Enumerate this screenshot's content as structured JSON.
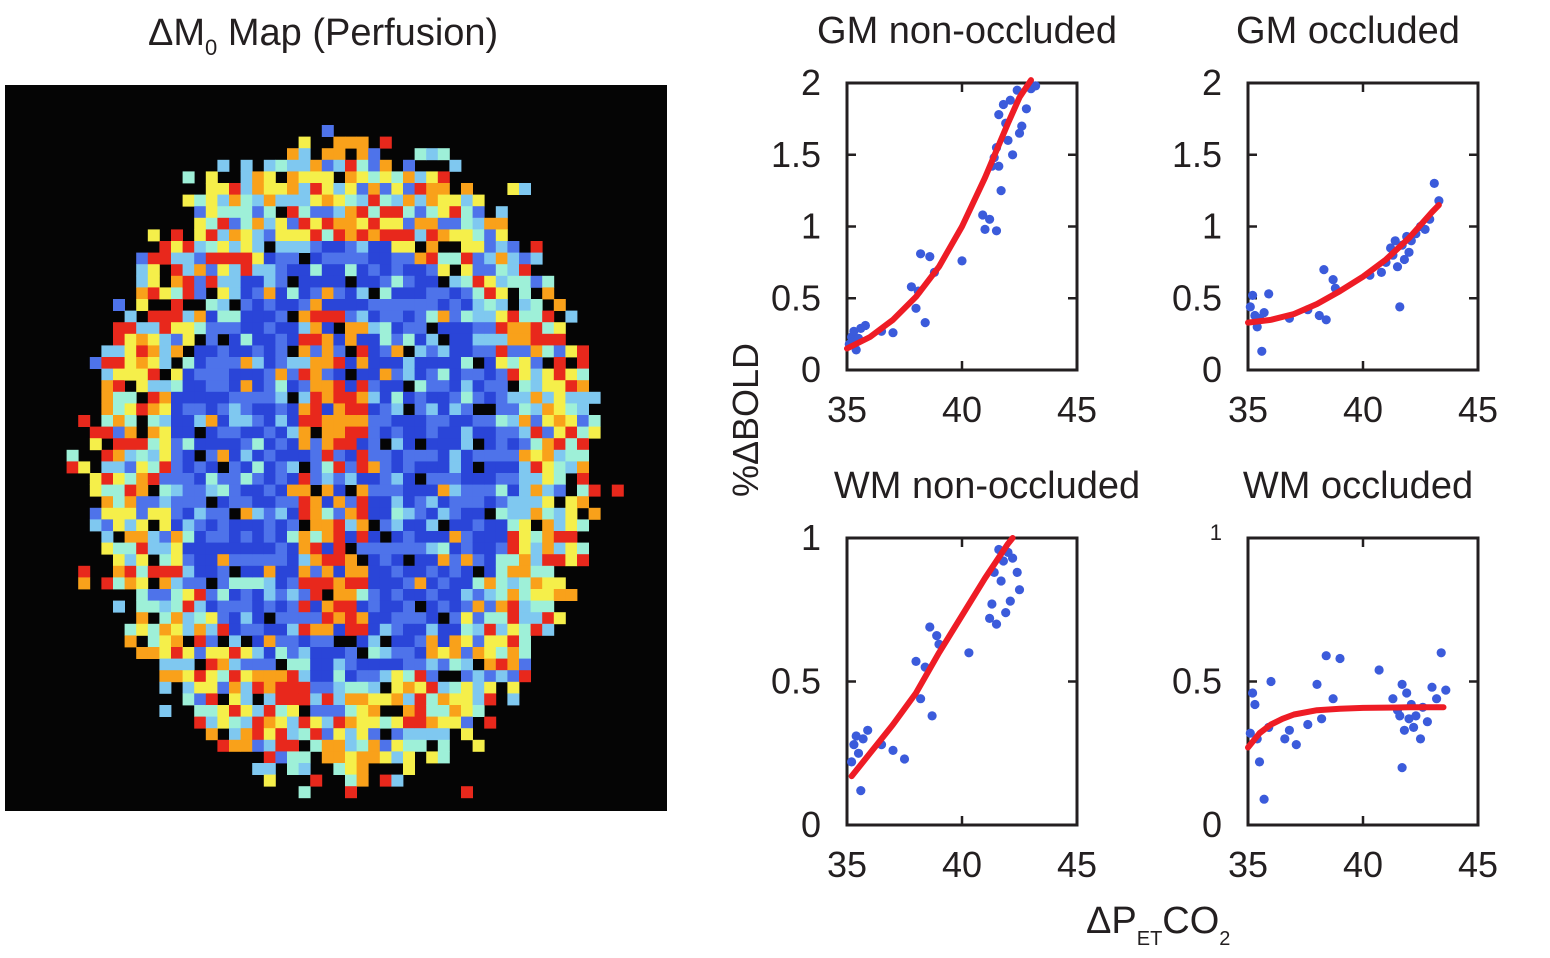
{
  "figure": {
    "map_title_prefix": "ΔM",
    "map_title_sub": "0",
    "map_title_suffix": " Map (Perfusion)",
    "ylabel": "%ΔBOLD",
    "xlabel_prefix": "ΔP",
    "xlabel_sub1": "ET",
    "xlabel_mid": "CO",
    "xlabel_sub2": "2"
  },
  "colors": {
    "points": "#3b5bdb",
    "fit": "#ee1c25",
    "map_background": "#050505"
  },
  "map_legend": {
    "colormap": [
      "#2a45d8",
      "#4e73ea",
      "#7fc8f0",
      "#9ef0d8",
      "#f5ef4a",
      "#f9a11a",
      "#e8281c"
    ]
  },
  "chart_data": [
    {
      "type": "scatter",
      "title": "GM non-occluded",
      "xlim": [
        35,
        45
      ],
      "ylim": [
        0,
        2
      ],
      "xticks": [
        35,
        40,
        45
      ],
      "yticks": [
        0,
        0.5,
        1,
        1.5,
        2
      ],
      "ytick_labels": [
        "0",
        "0.5",
        "1",
        "1.5",
        "2"
      ],
      "points": [
        [
          35.1,
          0.18
        ],
        [
          35.2,
          0.23
        ],
        [
          35.3,
          0.2
        ],
        [
          35.3,
          0.27
        ],
        [
          35.4,
          0.14
        ],
        [
          35.5,
          0.22
        ],
        [
          35.6,
          0.29
        ],
        [
          35.8,
          0.31
        ],
        [
          36.5,
          0.27
        ],
        [
          37.0,
          0.26
        ],
        [
          37.8,
          0.58
        ],
        [
          38.0,
          0.43
        ],
        [
          38.1,
          0.55
        ],
        [
          38.2,
          0.81
        ],
        [
          38.4,
          0.33
        ],
        [
          38.6,
          0.79
        ],
        [
          38.8,
          0.68
        ],
        [
          40.0,
          0.76
        ],
        [
          40.9,
          1.08
        ],
        [
          41.0,
          0.98
        ],
        [
          41.2,
          1.05
        ],
        [
          41.3,
          1.42
        ],
        [
          41.4,
          1.48
        ],
        [
          41.5,
          0.97
        ],
        [
          41.5,
          1.55
        ],
        [
          41.6,
          1.78
        ],
        [
          41.6,
          1.42
        ],
        [
          41.7,
          1.25
        ],
        [
          41.8,
          1.85
        ],
        [
          41.9,
          1.72
        ],
        [
          42.0,
          1.6
        ],
        [
          42.1,
          1.88
        ],
        [
          42.2,
          1.5
        ],
        [
          42.4,
          1.95
        ],
        [
          42.5,
          1.65
        ],
        [
          42.6,
          1.7
        ],
        [
          42.8,
          1.82
        ],
        [
          43.0,
          1.96
        ],
        [
          43.2,
          1.98
        ]
      ],
      "fit": [
        [
          35.0,
          0.15
        ],
        [
          36.0,
          0.23
        ],
        [
          37.0,
          0.35
        ],
        [
          38.0,
          0.51
        ],
        [
          39.0,
          0.72
        ],
        [
          40.0,
          1.0
        ],
        [
          41.0,
          1.34
        ],
        [
          42.0,
          1.72
        ],
        [
          42.5,
          1.9
        ],
        [
          43.0,
          2.02
        ]
      ]
    },
    {
      "type": "scatter",
      "title": "GM occluded",
      "xlim": [
        35,
        45
      ],
      "ylim": [
        0,
        2
      ],
      "xticks": [
        35,
        40,
        45
      ],
      "yticks": [
        0,
        0.5,
        1,
        1.5,
        2
      ],
      "ytick_labels": [
        "0",
        "0.5",
        "1",
        "1.5",
        "2"
      ],
      "points": [
        [
          35.1,
          0.44
        ],
        [
          35.2,
          0.52
        ],
        [
          35.3,
          0.38
        ],
        [
          35.4,
          0.3
        ],
        [
          35.5,
          0.36
        ],
        [
          35.6,
          0.13
        ],
        [
          35.7,
          0.4
        ],
        [
          35.9,
          0.53
        ],
        [
          36.8,
          0.36
        ],
        [
          37.6,
          0.42
        ],
        [
          38.1,
          0.38
        ],
        [
          38.3,
          0.7
        ],
        [
          38.4,
          0.35
        ],
        [
          38.7,
          0.63
        ],
        [
          38.8,
          0.57
        ],
        [
          40.3,
          0.66
        ],
        [
          40.8,
          0.68
        ],
        [
          41.0,
          0.75
        ],
        [
          41.2,
          0.85
        ],
        [
          41.3,
          0.8
        ],
        [
          41.4,
          0.9
        ],
        [
          41.5,
          0.72
        ],
        [
          41.6,
          0.44
        ],
        [
          41.7,
          0.87
        ],
        [
          41.8,
          0.77
        ],
        [
          41.9,
          0.93
        ],
        [
          42.0,
          0.82
        ],
        [
          42.1,
          0.9
        ],
        [
          42.3,
          0.95
        ],
        [
          42.5,
          1.0
        ],
        [
          42.7,
          0.98
        ],
        [
          42.9,
          1.05
        ],
        [
          43.1,
          1.3
        ],
        [
          43.3,
          1.18
        ]
      ],
      "fit": [
        [
          35.0,
          0.33
        ],
        [
          36.0,
          0.35
        ],
        [
          37.0,
          0.39
        ],
        [
          38.0,
          0.46
        ],
        [
          39.0,
          0.55
        ],
        [
          40.0,
          0.65
        ],
        [
          41.0,
          0.77
        ],
        [
          42.0,
          0.92
        ],
        [
          43.0,
          1.1
        ],
        [
          43.3,
          1.15
        ]
      ]
    },
    {
      "type": "scatter",
      "title": "WM non-occluded",
      "xlim": [
        35,
        45
      ],
      "ylim": [
        0,
        1
      ],
      "xticks": [
        35,
        40,
        45
      ],
      "yticks": [
        0,
        0.5,
        1
      ],
      "ytick_labels": [
        "0",
        "0.5",
        "1"
      ],
      "points": [
        [
          35.2,
          0.22
        ],
        [
          35.3,
          0.28
        ],
        [
          35.4,
          0.31
        ],
        [
          35.5,
          0.25
        ],
        [
          35.6,
          0.12
        ],
        [
          35.7,
          0.3
        ],
        [
          35.9,
          0.33
        ],
        [
          36.5,
          0.28
        ],
        [
          37.0,
          0.26
        ],
        [
          37.5,
          0.23
        ],
        [
          38.0,
          0.57
        ],
        [
          38.2,
          0.44
        ],
        [
          38.4,
          0.55
        ],
        [
          38.6,
          0.69
        ],
        [
          38.7,
          0.38
        ],
        [
          38.9,
          0.66
        ],
        [
          39.0,
          0.63
        ],
        [
          40.3,
          0.6
        ],
        [
          41.2,
          0.72
        ],
        [
          41.3,
          0.77
        ],
        [
          41.4,
          0.88
        ],
        [
          41.5,
          0.7
        ],
        [
          41.6,
          0.96
        ],
        [
          41.7,
          0.85
        ],
        [
          41.8,
          0.92
        ],
        [
          41.9,
          0.74
        ],
        [
          42.0,
          0.95
        ],
        [
          42.1,
          0.78
        ],
        [
          42.2,
          0.93
        ],
        [
          42.4,
          0.88
        ],
        [
          42.5,
          0.82
        ]
      ],
      "fit": [
        [
          35.2,
          0.17
        ],
        [
          36.0,
          0.25
        ],
        [
          37.0,
          0.35
        ],
        [
          38.0,
          0.46
        ],
        [
          39.0,
          0.6
        ],
        [
          40.0,
          0.73
        ],
        [
          41.0,
          0.86
        ],
        [
          42.0,
          0.98
        ],
        [
          42.2,
          1.0
        ]
      ]
    },
    {
      "type": "scatter",
      "title": "WM occluded",
      "xlim": [
        35,
        45
      ],
      "ylim": [
        0,
        1
      ],
      "xticks": [
        35,
        40,
        45
      ],
      "yticks": [
        0,
        0.5,
        1
      ],
      "ytick_labels": [
        "0",
        "0.5",
        "1"
      ],
      "points": [
        [
          35.1,
          0.32
        ],
        [
          35.2,
          0.46
        ],
        [
          35.3,
          0.42
        ],
        [
          35.4,
          0.3
        ],
        [
          35.5,
          0.22
        ],
        [
          35.7,
          0.09
        ],
        [
          35.9,
          0.34
        ],
        [
          36.0,
          0.5
        ],
        [
          36.6,
          0.3
        ],
        [
          36.8,
          0.33
        ],
        [
          37.1,
          0.28
        ],
        [
          37.6,
          0.35
        ],
        [
          38.0,
          0.49
        ],
        [
          38.2,
          0.37
        ],
        [
          38.4,
          0.59
        ],
        [
          38.7,
          0.44
        ],
        [
          39.0,
          0.58
        ],
        [
          40.7,
          0.54
        ],
        [
          41.3,
          0.44
        ],
        [
          41.5,
          0.4
        ],
        [
          41.6,
          0.38
        ],
        [
          41.7,
          0.49
        ],
        [
          41.7,
          0.2
        ],
        [
          41.8,
          0.33
        ],
        [
          41.9,
          0.46
        ],
        [
          42.0,
          0.37
        ],
        [
          42.1,
          0.42
        ],
        [
          42.2,
          0.34
        ],
        [
          42.3,
          0.38
        ],
        [
          42.5,
          0.3
        ],
        [
          42.6,
          0.41
        ],
        [
          42.8,
          0.36
        ],
        [
          43.0,
          0.48
        ],
        [
          43.2,
          0.44
        ],
        [
          43.4,
          0.6
        ],
        [
          43.6,
          0.47
        ]
      ],
      "fit": [
        [
          35.0,
          0.27
        ],
        [
          35.5,
          0.32
        ],
        [
          36.0,
          0.35
        ],
        [
          36.5,
          0.37
        ],
        [
          37.0,
          0.385
        ],
        [
          38.0,
          0.4
        ],
        [
          39.0,
          0.405
        ],
        [
          40.0,
          0.408
        ],
        [
          42.0,
          0.41
        ],
        [
          43.5,
          0.41
        ]
      ]
    }
  ]
}
